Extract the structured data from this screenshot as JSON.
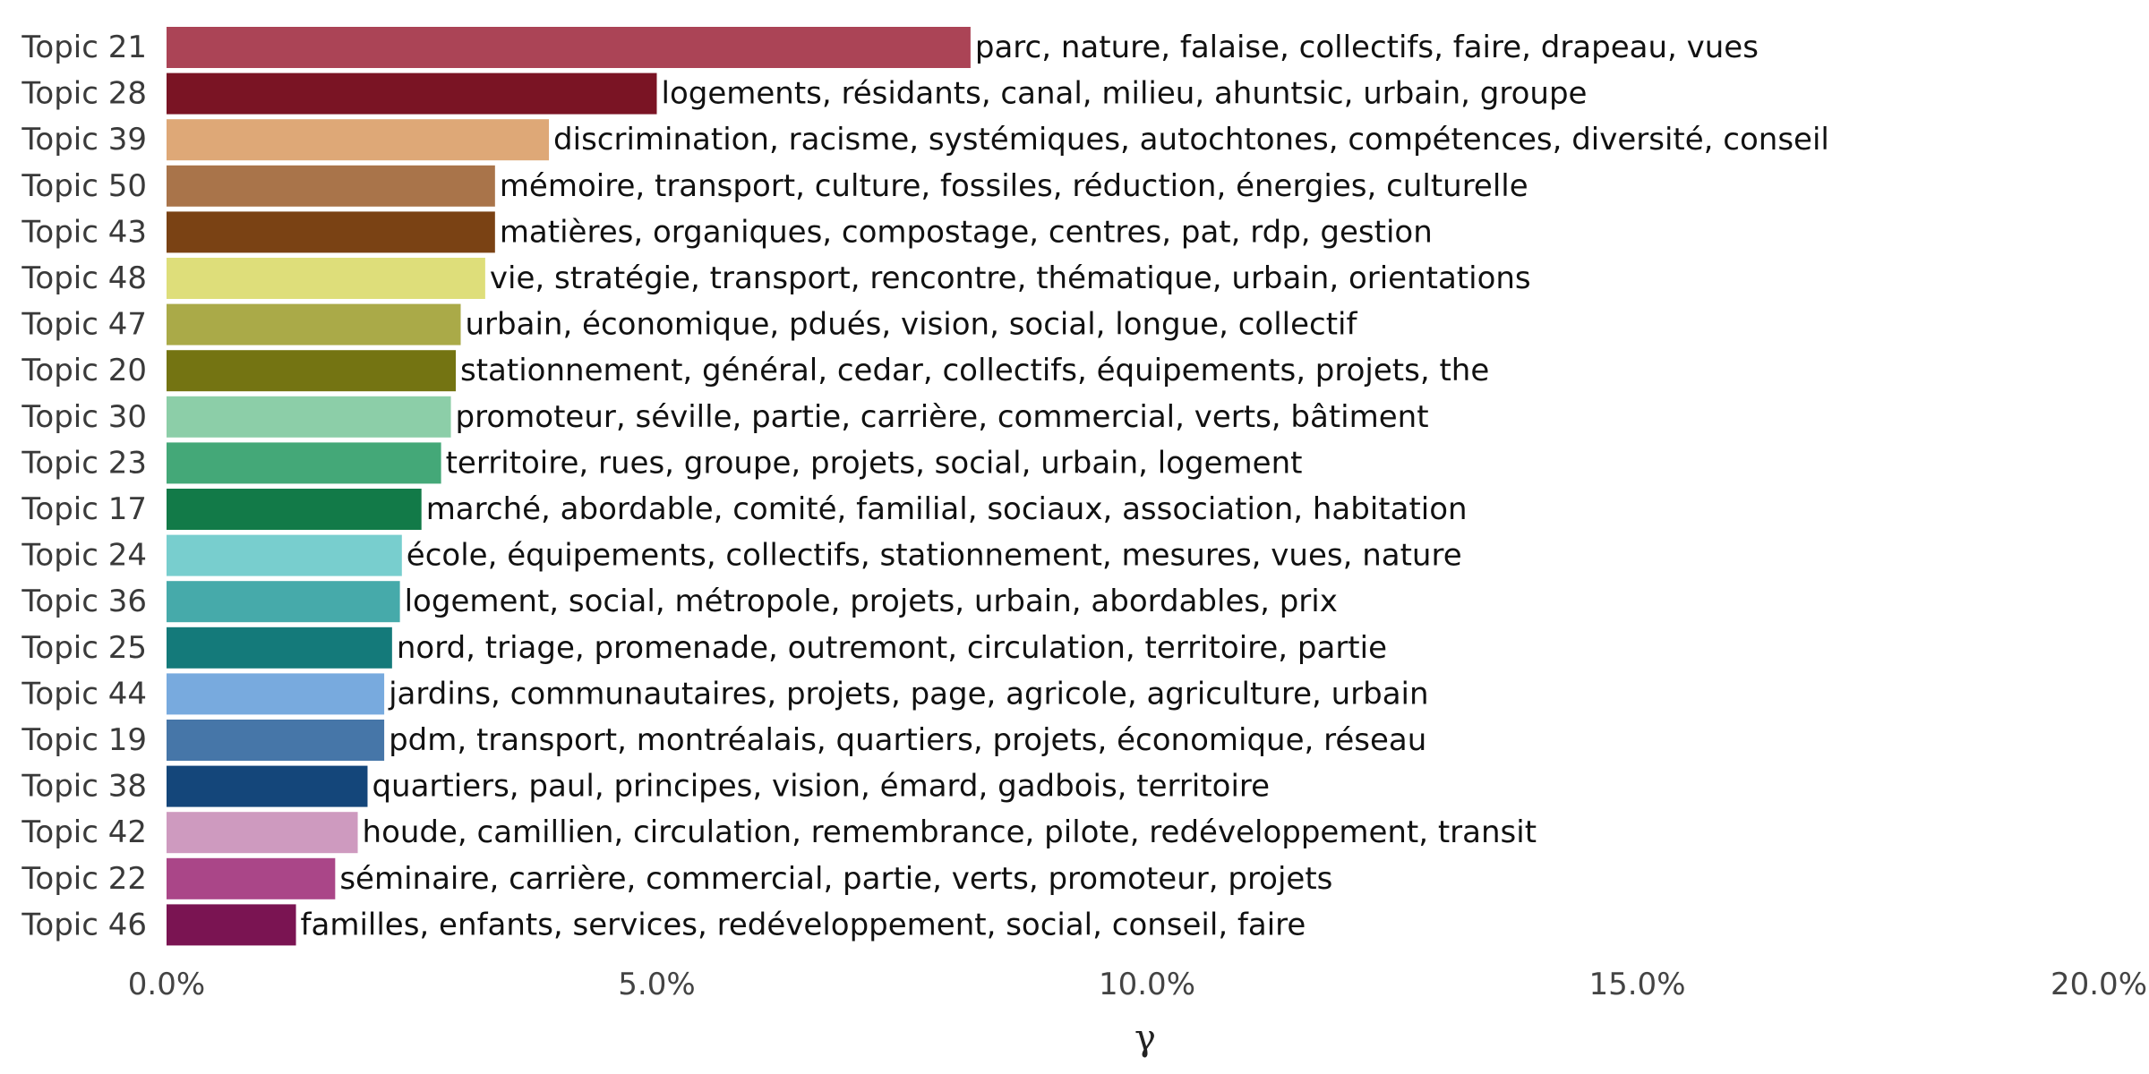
{
  "chart_data": {
    "type": "bar",
    "orientation": "horizontal",
    "xlabel": "γ",
    "ylabel": "",
    "xlim": [
      0,
      20
    ],
    "x_ticks": [
      0,
      5,
      10,
      15,
      20
    ],
    "x_tick_labels": [
      "0.0%",
      "5.0%",
      "10.0%",
      "15.0%",
      "20.0%"
    ],
    "grid": false,
    "bars": [
      {
        "category": "Topic 21",
        "value": 8.2,
        "color": "#ab4456",
        "terms": "parc, nature, falaise, collectifs, faire, drapeau, vues"
      },
      {
        "category": "Topic 28",
        "value": 5.0,
        "color": "#7a1424",
        "terms": "logements, résidants, canal, milieu, ahuntsic, urbain, groupe"
      },
      {
        "category": "Topic 39",
        "value": 3.9,
        "color": "#dea877",
        "terms": "discrimination, racisme, systémiques, autochtones, compétences, diversité, conseil"
      },
      {
        "category": "Topic 50",
        "value": 3.35,
        "color": "#a9744a",
        "terms": "mémoire, transport, culture, fossiles, réduction, énergies, culturelle"
      },
      {
        "category": "Topic 43",
        "value": 3.35,
        "color": "#7a4214",
        "terms": "matières, organiques, compostage, centres, pat, rdp, gestion"
      },
      {
        "category": "Topic 48",
        "value": 3.25,
        "color": "#dede7a",
        "terms": "vie, stratégie, transport, rencontre, thématique, urbain, orientations"
      },
      {
        "category": "Topic 47",
        "value": 3.0,
        "color": "#aaaa48",
        "terms": "urbain, économique, pdués, vision, social, longue, collectif"
      },
      {
        "category": "Topic 20",
        "value": 2.95,
        "color": "#747412",
        "terms": "stationnement, général, cedar, collectifs, équipements, projets, the"
      },
      {
        "category": "Topic 30",
        "value": 2.9,
        "color": "#8ccea8",
        "terms": "promoteur, séville, partie, carrière, commercial, verts, bâtiment"
      },
      {
        "category": "Topic 23",
        "value": 2.8,
        "color": "#44a878",
        "terms": "territoire, rues, groupe, projets, social, urbain, logement"
      },
      {
        "category": "Topic 17",
        "value": 2.6,
        "color": "#127a48",
        "terms": "marché, abordable, comité, familial, sociaux, association, habitation"
      },
      {
        "category": "Topic 24",
        "value": 2.4,
        "color": "#78cece",
        "terms": "école, équipements, collectifs, stationnement, mesures, vues, nature"
      },
      {
        "category": "Topic 36",
        "value": 2.38,
        "color": "#46aaaa",
        "terms": "logement, social, métropole, projets, urbain, abordables, prix"
      },
      {
        "category": "Topic 25",
        "value": 2.3,
        "color": "#147a7a",
        "terms": "nord, triage, promenade, outremont, circulation, territoire, partie"
      },
      {
        "category": "Topic 44",
        "value": 2.22,
        "color": "#78aade",
        "terms": "jardins, communautaires, projets, page, agricole, agriculture, urbain"
      },
      {
        "category": "Topic 19",
        "value": 2.22,
        "color": "#4676a8",
        "terms": "pdm, transport, montréalais, quartiers, projets, économique, réseau"
      },
      {
        "category": "Topic 38",
        "value": 2.05,
        "color": "#14467a",
        "terms": "quartiers, paul, principes, vision, émard, gadbois, territoire"
      },
      {
        "category": "Topic 42",
        "value": 1.95,
        "color": "#ce9abf",
        "terms": "houde, camillien, circulation, remembrance, pilote, redéveloppement, transit"
      },
      {
        "category": "Topic 22",
        "value": 1.72,
        "color": "#aa4688",
        "terms": "séminaire, carrière, commercial, partie, verts, promoteur, projets"
      },
      {
        "category": "Topic 46",
        "value": 1.32,
        "color": "#7a1452",
        "terms": "familles, enfants, services, redéveloppement, social, conseil, faire"
      }
    ]
  }
}
